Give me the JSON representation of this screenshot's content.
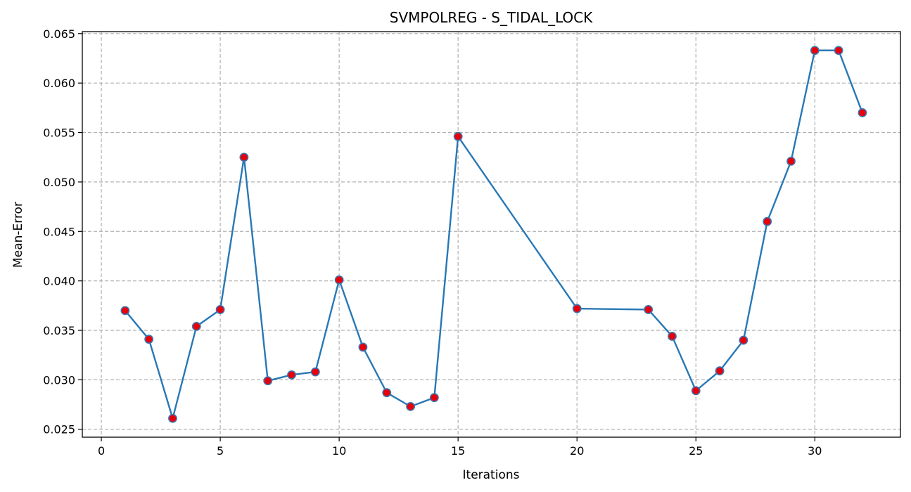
{
  "chart_data": {
    "type": "line",
    "title": "SVMPOLREG - S_TIDAL_LOCK",
    "xlabel": "Iterations",
    "ylabel": "Mean-Error",
    "xlim": [
      -0.8,
      33.6
    ],
    "ylim": [
      0.0242,
      0.0652
    ],
    "xticks": [
      0,
      5,
      10,
      15,
      20,
      25,
      30
    ],
    "xtick_labels": [
      "0",
      "5",
      "10",
      "15",
      "20",
      "25",
      "30"
    ],
    "yticks": [
      0.025,
      0.03,
      0.035,
      0.04,
      0.045,
      0.05,
      0.055,
      0.06,
      0.065
    ],
    "ytick_labels": [
      "0.025",
      "0.030",
      "0.035",
      "0.040",
      "0.045",
      "0.050",
      "0.055",
      "0.060",
      "0.065"
    ],
    "grid": true,
    "colors": {
      "line": "#2878b5",
      "marker_fill": "#e8000b",
      "marker_edge": "#3b75af"
    },
    "series": [
      {
        "x": [
          1,
          2,
          3,
          4,
          5,
          6,
          7,
          8,
          9,
          10,
          11,
          12,
          13,
          14,
          15,
          20,
          23,
          24,
          25,
          26,
          27,
          28,
          29,
          30,
          31,
          32
        ],
        "values": [
          0.037,
          0.0341,
          0.0261,
          0.0354,
          0.0371,
          0.0525,
          0.0299,
          0.0305,
          0.0308,
          0.0401,
          0.0333,
          0.0287,
          0.0273,
          0.0282,
          0.0546,
          0.0372,
          0.0371,
          0.0344,
          0.0289,
          0.0309,
          0.034,
          0.046,
          0.0521,
          0.0633,
          0.0633,
          0.057
        ]
      }
    ]
  }
}
